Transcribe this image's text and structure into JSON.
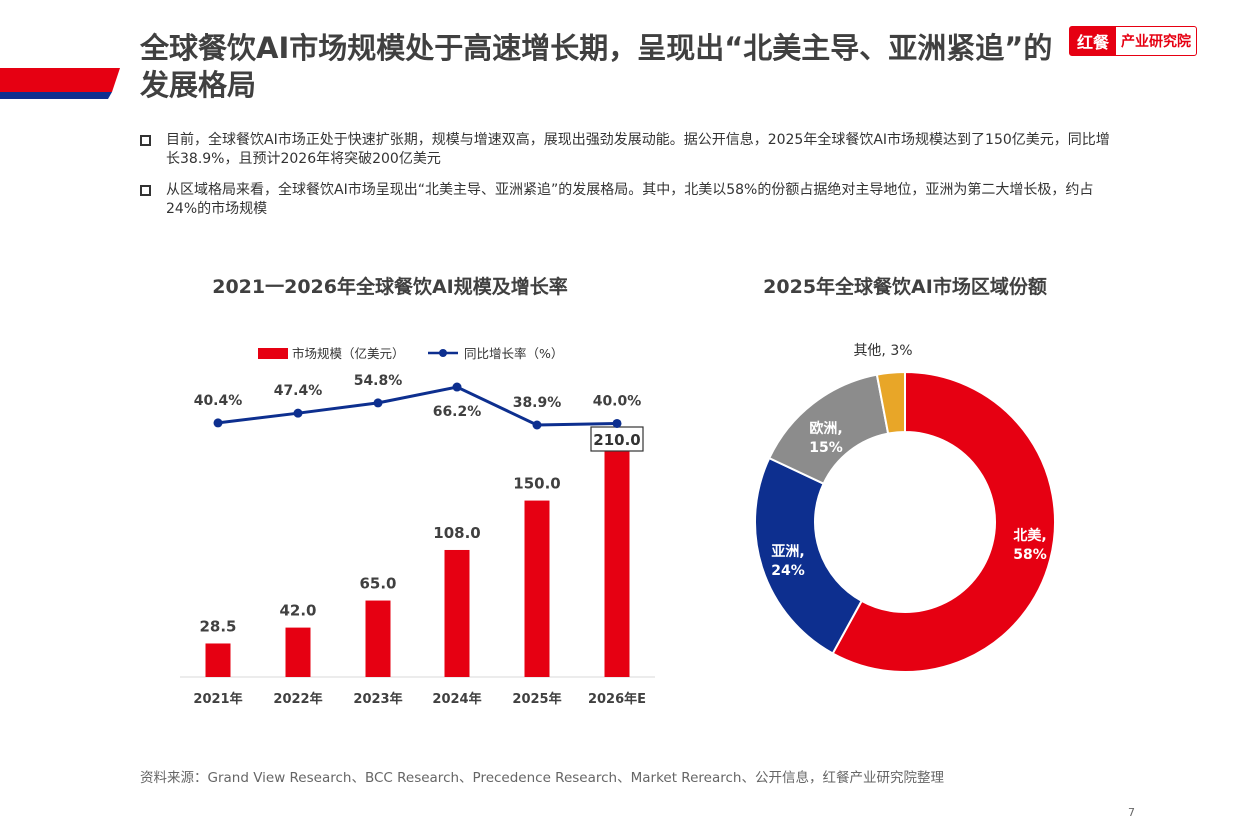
{
  "header": {
    "title": "全球餐饮AI市场规模处于高速增长期，呈现出“北美主导、亚洲紧追”的发展格局",
    "logo_left": "红餐",
    "logo_right": "产业研究院"
  },
  "bullets": [
    "目前，全球餐饮AI市场正处于快速扩张期，规模与增速双高，展现出强劲发展动能。据公开信息，2025年全球餐饮AI市场规模达到了150亿美元，同比增长38.9%，且预计2026年将突破200亿美元",
    "从区域格局来看，全球餐饮AI市场呈现出“北美主导、亚洲紧追”的发展格局。其中，北美以58%的份额占据绝对主导地位，亚洲为第二大增长极，约占24%的市场规模"
  ],
  "chart_data": [
    {
      "type": "bar",
      "title": "2021一2026年全球餐饮AI规模及增长率",
      "categories": [
        "2021年",
        "2022年",
        "2023年",
        "2024年",
        "2025年",
        "2026年E"
      ],
      "series": [
        {
          "name": "市场规模（亿美元）",
          "type": "bar",
          "values": [
            28.5,
            42.0,
            65.0,
            108.0,
            150.0,
            210.0
          ],
          "labels": [
            "28.5",
            "42.0",
            "65.0",
            "108.0",
            "150.0",
            "210.0"
          ],
          "color": "#e60012"
        },
        {
          "name": "同比增长率（%）",
          "type": "line",
          "values": [
            40.4,
            47.4,
            54.8,
            66.2,
            38.9,
            40.0
          ],
          "labels": [
            "40.4%",
            "47.4%",
            "54.8%",
            "66.2%",
            "38.9%",
            "40.0%"
          ],
          "color": "#0d2f8f"
        }
      ],
      "legend": "top",
      "highlighted_label": "210.0"
    },
    {
      "type": "pie",
      "title": "2025年全球餐饮AI市场区域份额",
      "donut": true,
      "slices": [
        {
          "name": "北美",
          "value": 58,
          "label": "北美,\n58%",
          "color": "#e60012"
        },
        {
          "name": "亚洲",
          "value": 24,
          "label": "亚洲,\n24%",
          "color": "#0d2f8f"
        },
        {
          "name": "欧洲",
          "value": 15,
          "label": "欧洲,\n15%",
          "color": "#8c8c8c"
        },
        {
          "name": "其他",
          "value": 3,
          "label": "其他, 3%",
          "color": "#e8a628"
        }
      ]
    }
  ],
  "footer": {
    "source": "资料来源：Grand View Research、BCC Research、Precedence Research、Market Rerearch、公开信息，红餐产业研究院整理",
    "page": "7"
  }
}
